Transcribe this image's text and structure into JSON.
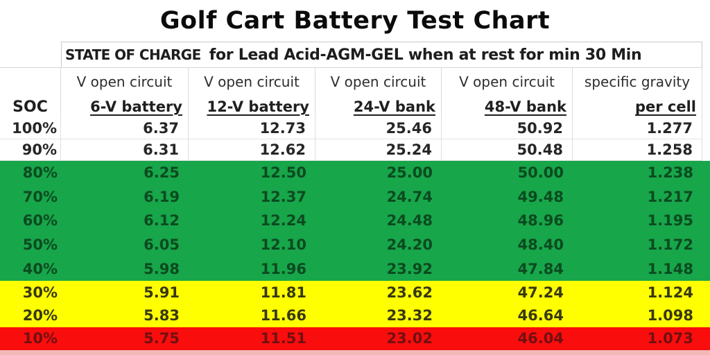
{
  "page_title": "Golf Cart Battery Test Chart",
  "subtitle": {
    "label": "STATE OF CHARGE",
    "text": "for Lead Acid-AGM-GEL when at rest for min 30 Min"
  },
  "colors": {
    "zone_green": "#17a64a",
    "zone_yellow": "#ffff00",
    "zone_red": "#f90d0d",
    "bottom_strip": "#f3b9b9",
    "gridline": "#d6d6d6"
  },
  "chart_data": {
    "type": "table",
    "title": "Golf Cart Battery Test Chart",
    "subtitle": "STATE OF CHARGE  for Lead Acid-AGM-GEL when at rest for min 30 Min",
    "header_row1": [
      "",
      "V open circuit",
      "V open circuit",
      "V open circuit",
      "V open circuit",
      "specific gravity"
    ],
    "header_row2": [
      "SOC",
      "6-V battery",
      "12-V battery",
      "24-V bank",
      "48-V bank",
      "per cell"
    ],
    "rows": [
      {
        "soc": "100%",
        "values": [
          "6.37",
          "12.73",
          "25.46",
          "50.92",
          "1.277"
        ],
        "zone": "white"
      },
      {
        "soc": "90%",
        "values": [
          "6.31",
          "12.62",
          "25.24",
          "50.48",
          "1.258"
        ],
        "zone": "white"
      },
      {
        "soc": "80%",
        "values": [
          "6.25",
          "12.50",
          "25.00",
          "50.00",
          "1.238"
        ],
        "zone": "green"
      },
      {
        "soc": "70%",
        "values": [
          "6.19",
          "12.37",
          "24.74",
          "49.48",
          "1.217"
        ],
        "zone": "green"
      },
      {
        "soc": "60%",
        "values": [
          "6.12",
          "12.24",
          "24.48",
          "48.96",
          "1.195"
        ],
        "zone": "green"
      },
      {
        "soc": "50%",
        "values": [
          "6.05",
          "12.10",
          "24.20",
          "48.40",
          "1.172"
        ],
        "zone": "green"
      },
      {
        "soc": "40%",
        "values": [
          "5.98",
          "11.96",
          "23.92",
          "47.84",
          "1.148"
        ],
        "zone": "green"
      },
      {
        "soc": "30%",
        "values": [
          "5.91",
          "11.81",
          "23.62",
          "47.24",
          "1.124"
        ],
        "zone": "yellow"
      },
      {
        "soc": "20%",
        "values": [
          "5.83",
          "11.66",
          "23.32",
          "46.64",
          "1.098"
        ],
        "zone": "yellow"
      },
      {
        "soc": "10%",
        "values": [
          "5.75",
          "11.51",
          "23.02",
          "46.04",
          "1.073"
        ],
        "zone": "red"
      }
    ]
  }
}
